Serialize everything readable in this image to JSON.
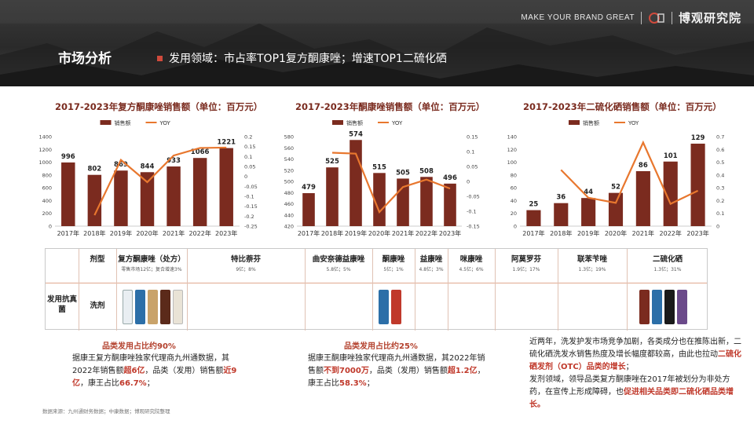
{
  "header": {
    "slogan": "MAKE YOUR BRAND GREAT",
    "brand_name": "博观研究院",
    "page_title": "市场分析",
    "headline": "发用领域：市占率TOP1复方酮康唑；增速TOP1二硫化硒"
  },
  "colors": {
    "bar": "#7b2b1f",
    "line": "#e8772e",
    "accent": "#b3402c"
  },
  "chart_data": [
    {
      "type": "bar",
      "title": "2017-2023年复方酮康唑销售额（单位：百万元）",
      "legend": [
        "销售额",
        "YOY"
      ],
      "categories": [
        "2017年",
        "2018年",
        "2019年",
        "2020年",
        "2021年",
        "2022年",
        "2023年"
      ],
      "series": [
        {
          "name": "销售额",
          "values": [
            996,
            802,
            869,
            844,
            933,
            1066,
            1221
          ]
        },
        {
          "name": "YOY",
          "values": [
            null,
            -0.195,
            0.083,
            -0.029,
            0.105,
            0.143,
            0.145
          ]
        }
      ],
      "ylim": [
        0,
        1400
      ],
      "yticks": [
        "0",
        "200",
        "400",
        "600",
        "800",
        "1000",
        "1200",
        "1400"
      ],
      "y2lim": [
        -0.25,
        0.2
      ],
      "y2ticks": [
        "-0.25",
        "-0.2",
        "-0.15",
        "-0.1",
        "-0.05",
        "0",
        "0.05",
        "0.1",
        "0.15",
        "0.2"
      ],
      "data_labels": [
        "996",
        "802",
        "869",
        "844",
        "933",
        "1066",
        "1221"
      ]
    },
    {
      "type": "bar",
      "title": "2017-2023年酮康唑销售额（单位：百万元）",
      "legend": [
        "销售额",
        "YOY"
      ],
      "categories": [
        "2017年",
        "2018年",
        "2019年",
        "2020年",
        "2021年",
        "2022年",
        "2023年"
      ],
      "series": [
        {
          "name": "销售额",
          "values": [
            479,
            525,
            574,
            515,
            505,
            508,
            496
          ]
        },
        {
          "name": "YOY",
          "values": [
            null,
            0.096,
            0.093,
            -0.103,
            -0.019,
            0.006,
            -0.024
          ]
        }
      ],
      "ylim": [
        420,
        580
      ],
      "yticks": [
        "420",
        "440",
        "460",
        "480",
        "500",
        "520",
        "540",
        "560",
        "580"
      ],
      "y2lim": [
        -0.15,
        0.15
      ],
      "y2ticks": [
        "-0.15",
        "-0.1",
        "-0.05",
        "0",
        "0.05",
        "0.1",
        "0.15"
      ],
      "data_labels": [
        "479",
        "525",
        "574",
        "515",
        "505",
        "508",
        "496"
      ]
    },
    {
      "type": "bar",
      "title": "2017-2023年二硫化硒销售额（单位：百万元）",
      "legend": [
        "销售额",
        "YOY"
      ],
      "categories": [
        "2017年",
        "2018年",
        "2019年",
        "2020年",
        "2021年",
        "2022年",
        "2023年"
      ],
      "series": [
        {
          "name": "销售额",
          "values": [
            25,
            36,
            44,
            52,
            86,
            101,
            129
          ]
        },
        {
          "name": "YOY",
          "values": [
            null,
            0.44,
            0.222,
            0.182,
            0.654,
            0.174,
            0.277
          ]
        }
      ],
      "ylim": [
        0,
        140
      ],
      "yticks": [
        "0",
        "20",
        "40",
        "60",
        "80",
        "100",
        "120",
        "140"
      ],
      "y2lim": [
        0,
        0.7
      ],
      "y2ticks": [
        "0",
        "0.1",
        "0.2",
        "0.3",
        "0.4",
        "0.5",
        "0.6",
        "0.7"
      ],
      "data_labels": [
        "25",
        "36",
        "44",
        "52",
        "86",
        "101",
        "129"
      ]
    }
  ],
  "table": {
    "col_header": "剂型",
    "row_label": "发用抗真菌",
    "row_type": "洗剂",
    "products": [
      {
        "name": "复方酮康唑（处方）",
        "sub": "零售市场12亿；复合增速3%"
      },
      {
        "name": "特比萘芬",
        "sub": "9亿；8%"
      },
      {
        "name": "曲安奈德益康唑",
        "sub": "5.8亿；5%"
      },
      {
        "name": "酮康唑",
        "sub": "5亿；1%"
      },
      {
        "name": "益康唑",
        "sub": "4.8亿；3%"
      },
      {
        "name": "咪康唑",
        "sub": "4.5亿；6%"
      },
      {
        "name": "阿莫罗芬",
        "sub": "1.9亿；17%"
      },
      {
        "name": "联苯苄唑",
        "sub": "1.3亿；19%"
      },
      {
        "name": "二硫化硒",
        "sub": "1.3亿；31%"
      }
    ],
    "pack_labels": [
      "康王",
      "采乐",
      "青丝九何",
      "康王",
      "采乐",
      "青丝九何",
      "康王",
      "999 皓发"
    ]
  },
  "notes": {
    "left_highlight": "品类发用占比约90%",
    "left_text_a": "据康王复方酮康唑独家代理商九州通数据，其2022年销售额",
    "left_em1": "超6亿",
    "left_text_b": "，品类（发用）销售额",
    "left_em2": "近9亿",
    "left_text_c": "，康王占比",
    "left_em3": "66.7%",
    "left_text_d": "；",
    "mid_highlight": "品类发用占比约25%",
    "mid_text_a": "据康王酮康唑独家代理商九州通数据，其2022年销售额",
    "mid_em1": "不到7000万",
    "mid_text_b": "，品类（发用）销售额",
    "mid_em2": "超1.2亿",
    "mid_text_c": "，康王占比",
    "mid_em3": "58.3%",
    "mid_text_d": "；",
    "right_p1_a": "近两年，洗发护发市场竞争加剧，各类成分也在推陈出新，二硫化硒洗发水销售热度及增长幅度都较高，由此也拉动",
    "right_p1_em": "二硫化硒发剂（OTC）品类的增长",
    "right_p1_b": "；",
    "right_p2_a": "发剂领域，领导品类复方酮康唑在2017年被划分为非处方药，在宣传上形成障碍，也",
    "right_p2_em": "促进相关品类即二硫化硒品类增长。",
    "source": "数据来源：九州通财务数据；中康数据；博观研究院整理"
  }
}
